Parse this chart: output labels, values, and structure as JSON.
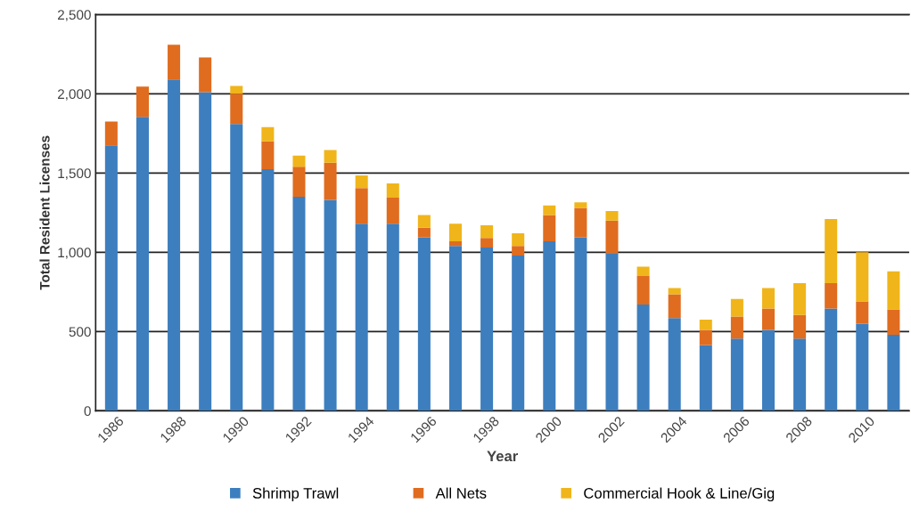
{
  "chart_data": {
    "type": "bar",
    "stacked": true,
    "xlabel": "Year",
    "ylabel": "Total Resident Licenses",
    "categories": [
      "1986",
      null,
      "1988",
      null,
      "1990",
      null,
      "1992",
      null,
      "1994",
      null,
      "1996",
      null,
      "1998",
      null,
      "2000",
      null,
      "2002",
      null,
      "2004",
      null,
      "2006",
      null,
      "2008",
      null,
      "2010",
      null
    ],
    "series": [
      {
        "name": "Shrimp Trawl",
        "color": "#3d7ebf",
        "values": [
          1675,
          1855,
          2090,
          2010,
          1810,
          1525,
          1350,
          1330,
          1180,
          1180,
          1095,
          1040,
          1030,
          980,
          1070,
          1095,
          995,
          670,
          585,
          415,
          455,
          510,
          455,
          645,
          550,
          480
        ]
      },
      {
        "name": "All Nets",
        "color": "#e06c1f",
        "values": [
          150,
          190,
          220,
          220,
          190,
          175,
          190,
          235,
          225,
          165,
          60,
          30,
          60,
          60,
          165,
          185,
          205,
          180,
          150,
          95,
          140,
          135,
          150,
          160,
          140,
          160
        ]
      },
      {
        "name": "Commercial Hook & Line/Gig",
        "color": "#f0b51a",
        "values": [
          0,
          0,
          0,
          0,
          50,
          90,
          70,
          80,
          80,
          90,
          80,
          110,
          80,
          80,
          60,
          35,
          60,
          60,
          40,
          65,
          110,
          130,
          200,
          405,
          310,
          240
        ]
      }
    ],
    "ylim": [
      0,
      2500
    ],
    "yticks": [
      {
        "value": 0,
        "label": "0"
      },
      {
        "value": 500,
        "label": "500"
      },
      {
        "value": 1000,
        "label": "1,000"
      },
      {
        "value": 1500,
        "label": "1,500"
      },
      {
        "value": 2000,
        "label": "2,000"
      },
      {
        "value": 2500,
        "label": "2,500"
      }
    ],
    "grid": "y",
    "legend": "bottom"
  }
}
